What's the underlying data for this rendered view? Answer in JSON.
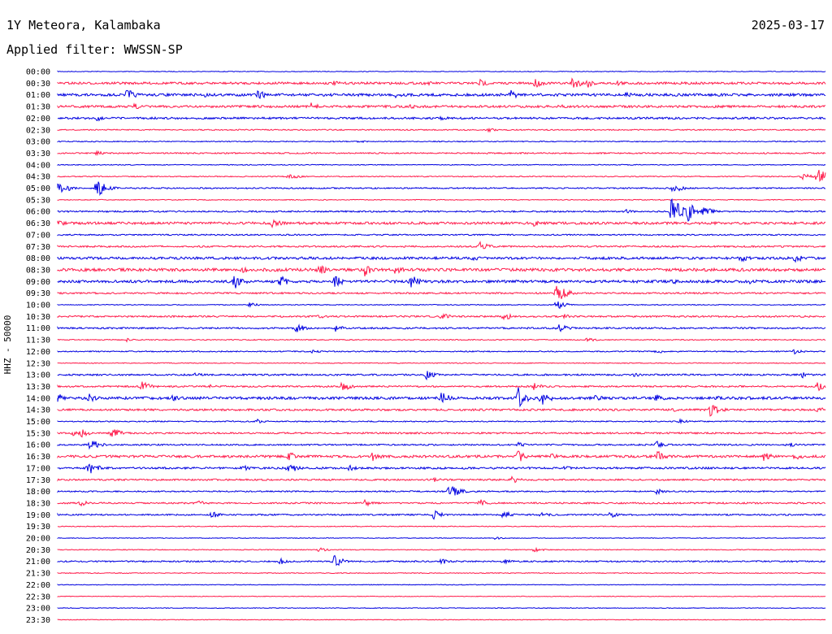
{
  "header": {
    "station": "1Y Meteora, Kalambaka",
    "date": "2025-03-17",
    "filter": "Applied filter: WWSSN-SP"
  },
  "chart_data": {
    "type": "line",
    "title": "1Y Meteora, Kalambaka",
    "ylabel": "HHZ - 50000",
    "xlabel": "",
    "colors": {
      "even_rows": "#0000e0",
      "odd_rows": "#ff1a4a"
    },
    "rows": [
      {
        "time": "00:00",
        "amp": 0.4,
        "events": []
      },
      {
        "time": "00:30",
        "amp": 1.4,
        "events": [
          [
            0.55,
            5
          ],
          [
            0.62,
            7
          ],
          [
            0.67,
            9
          ],
          [
            0.69,
            6
          ],
          [
            0.73,
            4
          ],
          [
            0.36,
            3
          ],
          [
            0.48,
            3
          ]
        ]
      },
      {
        "time": "01:00",
        "amp": 1.6,
        "events": [
          [
            0.09,
            8
          ],
          [
            0.26,
            7
          ],
          [
            0.59,
            6
          ],
          [
            0.74,
            5
          ],
          [
            0.44,
            4
          ],
          [
            0.19,
            4
          ]
        ]
      },
      {
        "time": "01:30",
        "amp": 1.4,
        "events": [
          [
            0.1,
            4
          ],
          [
            0.33,
            5
          ],
          [
            0.65,
            4
          ],
          [
            0.46,
            3
          ]
        ]
      },
      {
        "time": "02:00",
        "amp": 1.2,
        "events": [
          [
            0.05,
            4
          ],
          [
            0.5,
            3
          ]
        ]
      },
      {
        "time": "02:30",
        "amp": 0.7,
        "events": [
          [
            0.56,
            3
          ]
        ]
      },
      {
        "time": "03:00",
        "amp": 0.6,
        "events": [
          [
            0.39,
            2
          ]
        ]
      },
      {
        "time": "03:30",
        "amp": 0.8,
        "events": [
          [
            0.05,
            3
          ]
        ]
      },
      {
        "time": "04:00",
        "amp": 0.5,
        "events": []
      },
      {
        "time": "04:30",
        "amp": 0.6,
        "events": [
          [
            0.3,
            5
          ],
          [
            0.97,
            5
          ],
          [
            0.99,
            12
          ]
        ]
      },
      {
        "time": "05:00",
        "amp": 0.8,
        "events": [
          [
            0.0,
            12
          ],
          [
            0.05,
            14
          ],
          [
            0.8,
            8
          ]
        ]
      },
      {
        "time": "05:30",
        "amp": 0.5,
        "events": []
      },
      {
        "time": "06:00",
        "amp": 0.9,
        "events": [
          [
            0.8,
            22
          ],
          [
            0.82,
            14
          ],
          [
            0.84,
            8
          ],
          [
            0.74,
            3
          ]
        ]
      },
      {
        "time": "06:30",
        "amp": 1.5,
        "events": [
          [
            0.0,
            5
          ],
          [
            0.28,
            7
          ],
          [
            0.62,
            4
          ]
        ]
      },
      {
        "time": "07:00",
        "amp": 0.8,
        "events": []
      },
      {
        "time": "07:30",
        "amp": 1.0,
        "events": [
          [
            0.55,
            6
          ]
        ]
      },
      {
        "time": "08:00",
        "amp": 1.5,
        "events": [
          [
            0.54,
            4
          ],
          [
            0.89,
            5
          ],
          [
            0.96,
            6
          ]
        ]
      },
      {
        "time": "08:30",
        "amp": 1.8,
        "events": [
          [
            0.24,
            5
          ],
          [
            0.34,
            7
          ],
          [
            0.4,
            8
          ],
          [
            0.44,
            6
          ],
          [
            0.14,
            4
          ]
        ]
      },
      {
        "time": "09:00",
        "amp": 1.6,
        "events": [
          [
            0.23,
            10
          ],
          [
            0.29,
            8
          ],
          [
            0.36,
            8
          ],
          [
            0.46,
            9
          ],
          [
            0.9,
            5
          ],
          [
            0.8,
            4
          ]
        ]
      },
      {
        "time": "09:30",
        "amp": 1.0,
        "events": [
          [
            0.65,
            14
          ]
        ]
      },
      {
        "time": "10:00",
        "amp": 0.5,
        "events": [
          [
            0.65,
            6
          ],
          [
            0.25,
            3
          ]
        ]
      },
      {
        "time": "10:30",
        "amp": 1.0,
        "events": [
          [
            0.5,
            5
          ],
          [
            0.58,
            6
          ],
          [
            0.34,
            3
          ],
          [
            0.66,
            3
          ]
        ]
      },
      {
        "time": "11:00",
        "amp": 1.0,
        "events": [
          [
            0.31,
            7
          ],
          [
            0.36,
            5
          ],
          [
            0.65,
            8
          ]
        ]
      },
      {
        "time": "11:30",
        "amp": 0.6,
        "events": [
          [
            0.09,
            3
          ],
          [
            0.69,
            3
          ]
        ]
      },
      {
        "time": "12:00",
        "amp": 0.7,
        "events": [
          [
            0.33,
            3
          ],
          [
            0.78,
            3
          ],
          [
            0.96,
            4
          ]
        ]
      },
      {
        "time": "12:30",
        "amp": 0.5,
        "events": []
      },
      {
        "time": "13:00",
        "amp": 1.0,
        "events": [
          [
            0.48,
            6
          ],
          [
            0.18,
            3
          ],
          [
            0.75,
            3
          ],
          [
            0.97,
            4
          ]
        ]
      },
      {
        "time": "13:30",
        "amp": 1.0,
        "events": [
          [
            0.11,
            8
          ],
          [
            0.37,
            7
          ],
          [
            0.62,
            5
          ],
          [
            0.99,
            6
          ],
          [
            0.2,
            3
          ]
        ]
      },
      {
        "time": "14:00",
        "amp": 1.6,
        "events": [
          [
            0.0,
            6
          ],
          [
            0.04,
            6
          ],
          [
            0.15,
            4
          ],
          [
            0.5,
            8
          ],
          [
            0.6,
            14
          ],
          [
            0.63,
            10
          ],
          [
            0.7,
            5
          ],
          [
            0.78,
            5
          ],
          [
            0.86,
            4
          ]
        ]
      },
      {
        "time": "14:30",
        "amp": 1.2,
        "events": [
          [
            0.85,
            10
          ],
          [
            0.8,
            3
          ],
          [
            0.99,
            4
          ]
        ]
      },
      {
        "time": "15:00",
        "amp": 0.7,
        "events": [
          [
            0.26,
            3
          ],
          [
            0.81,
            3
          ]
        ]
      },
      {
        "time": "15:30",
        "amp": 1.0,
        "events": [
          [
            0.03,
            6
          ],
          [
            0.07,
            8
          ],
          [
            0.02,
            4
          ]
        ]
      },
      {
        "time": "16:00",
        "amp": 0.9,
        "events": [
          [
            0.04,
            10
          ],
          [
            0.6,
            3
          ],
          [
            0.78,
            5
          ],
          [
            0.95,
            4
          ]
        ]
      },
      {
        "time": "16:30",
        "amp": 1.5,
        "events": [
          [
            0.3,
            7
          ],
          [
            0.41,
            6
          ],
          [
            0.6,
            8
          ],
          [
            0.64,
            5
          ],
          [
            0.78,
            8
          ],
          [
            0.92,
            6
          ],
          [
            0.96,
            5
          ]
        ]
      },
      {
        "time": "17:00",
        "amp": 1.2,
        "events": [
          [
            0.04,
            10
          ],
          [
            0.3,
            8
          ],
          [
            0.24,
            4
          ],
          [
            0.38,
            4
          ],
          [
            0.66,
            3
          ]
        ]
      },
      {
        "time": "17:30",
        "amp": 1.0,
        "events": [
          [
            0.59,
            6
          ],
          [
            0.49,
            3
          ]
        ]
      },
      {
        "time": "18:00",
        "amp": 0.8,
        "events": [
          [
            0.51,
            12
          ],
          [
            0.78,
            4
          ]
        ]
      },
      {
        "time": "18:30",
        "amp": 1.0,
        "events": [
          [
            0.03,
            4
          ],
          [
            0.18,
            5
          ],
          [
            0.4,
            4
          ],
          [
            0.55,
            5
          ]
        ]
      },
      {
        "time": "19:00",
        "amp": 0.9,
        "events": [
          [
            0.2,
            5
          ],
          [
            0.49,
            6
          ],
          [
            0.58,
            6
          ],
          [
            0.63,
            4
          ],
          [
            0.72,
            4
          ]
        ]
      },
      {
        "time": "19:30",
        "amp": 0.5,
        "events": []
      },
      {
        "time": "20:00",
        "amp": 0.4,
        "events": [
          [
            0.57,
            2
          ]
        ]
      },
      {
        "time": "20:30",
        "amp": 0.5,
        "events": [
          [
            0.34,
            3
          ],
          [
            0.62,
            3
          ]
        ]
      },
      {
        "time": "21:00",
        "amp": 0.9,
        "events": [
          [
            0.36,
            8
          ],
          [
            0.29,
            4
          ],
          [
            0.5,
            4
          ],
          [
            0.58,
            4
          ]
        ]
      },
      {
        "time": "21:30",
        "amp": 0.5,
        "events": []
      },
      {
        "time": "22:00",
        "amp": 0.4,
        "events": []
      },
      {
        "time": "22:30",
        "amp": 0.4,
        "events": []
      },
      {
        "time": "23:00",
        "amp": 0.4,
        "events": []
      },
      {
        "time": "23:30",
        "amp": 0.4,
        "events": []
      }
    ]
  }
}
